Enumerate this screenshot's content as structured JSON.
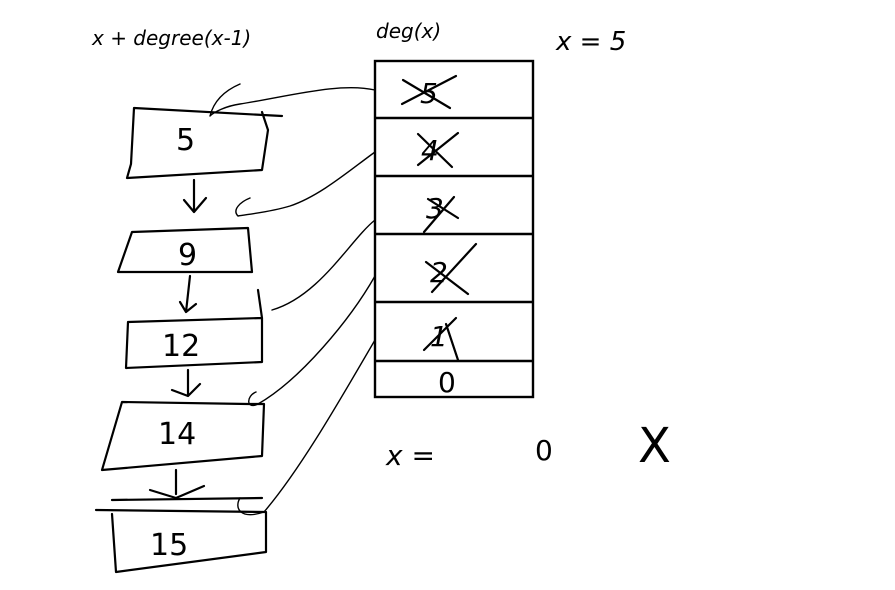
{
  "header": {
    "expression": "x + degree(x-1)",
    "array_label": "deg(x)",
    "x_assignment": "x = 5"
  },
  "array": {
    "slots": [
      {
        "value": "5",
        "crossed": true
      },
      {
        "value": "4",
        "crossed": true
      },
      {
        "value": "3",
        "crossed": true
      },
      {
        "value": "2",
        "crossed": true
      },
      {
        "value": "1",
        "crossed": true
      },
      {
        "value": "0",
        "crossed": false
      }
    ]
  },
  "list": {
    "nodes": [
      "5",
      "9",
      "12",
      "14",
      "15"
    ]
  },
  "footer": {
    "x_equals": "x =",
    "x_value": "0",
    "cross_mark": "X"
  }
}
